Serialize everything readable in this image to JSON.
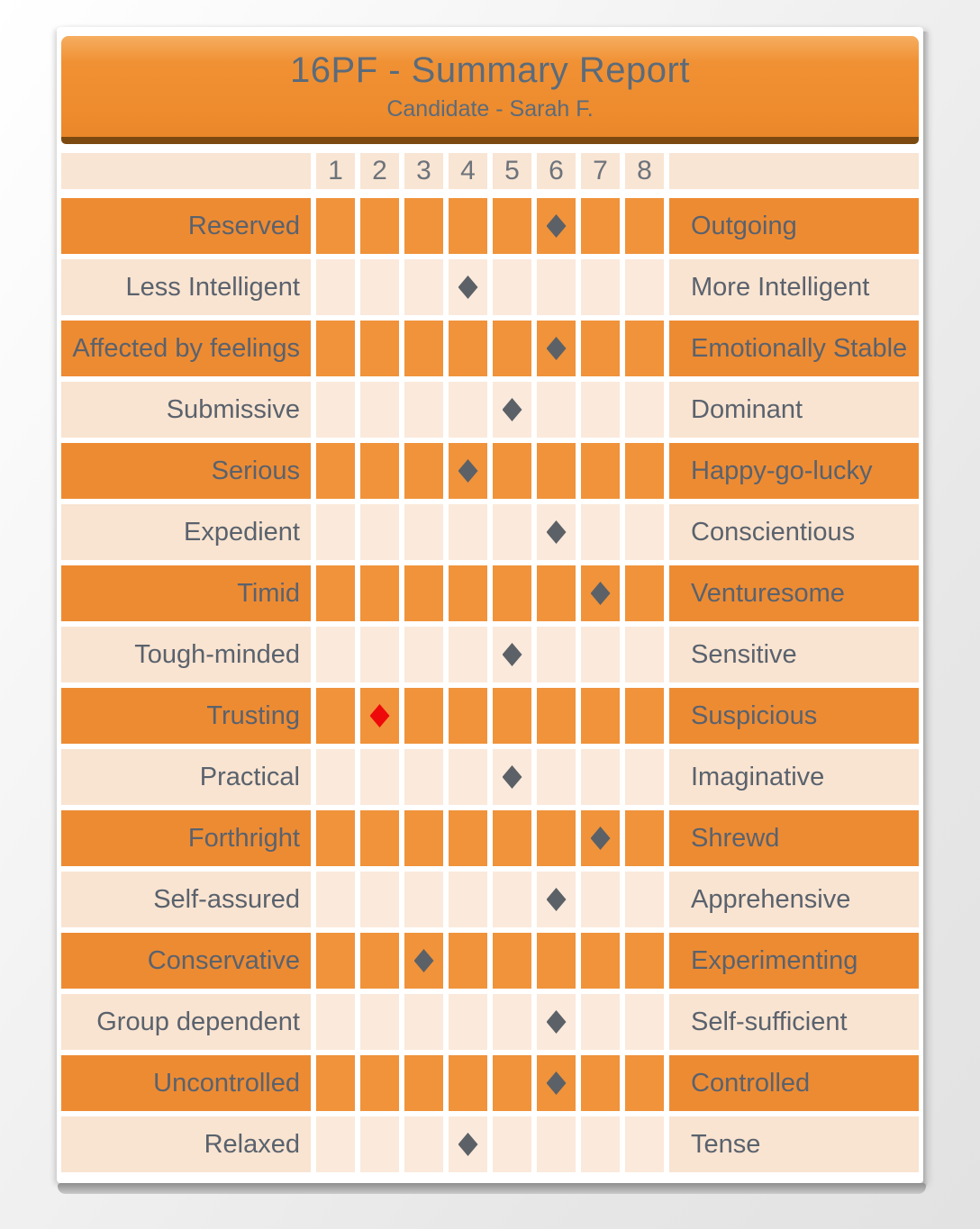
{
  "page": {
    "title": "16PF - Summary Report",
    "subtitle": "Candidate - Sarah F."
  },
  "colors": {
    "orange": "#ed8b33",
    "orange_cell": "#f0933b",
    "peach": "#f9e4d1",
    "peach_cell": "#fbe9db",
    "scale_bg": "#f9e5d3",
    "header_edge": "#7c4a10",
    "title_text": "#5b6b7b",
    "label_text": "#5a626d",
    "tick_text": "#6d737b",
    "marker": "#5b6167",
    "marker_red": "#ee0a0a"
  },
  "chart_data": {
    "type": "scatter",
    "title": "16PF - Summary Report",
    "subtitle": "Candidate - Sarah F.",
    "x_range": [
      1,
      8
    ],
    "x_ticks": [
      "1",
      "2",
      "3",
      "4",
      "5",
      "6",
      "7",
      "8"
    ],
    "grid": false,
    "legend": false,
    "factors": [
      {
        "left": "Reserved",
        "right": "Outgoing",
        "score": 6,
        "marker": "gray"
      },
      {
        "left": "Less Intelligent",
        "right": "More Intelligent",
        "score": 4,
        "marker": "gray"
      },
      {
        "left": "Affected by feelings",
        "right": "Emotionally Stable",
        "score": 6,
        "marker": "gray"
      },
      {
        "left": "Submissive",
        "right": "Dominant",
        "score": 5,
        "marker": "gray"
      },
      {
        "left": "Serious",
        "right": "Happy-go-lucky",
        "score": 4,
        "marker": "gray"
      },
      {
        "left": "Expedient",
        "right": "Conscientious",
        "score": 6,
        "marker": "gray"
      },
      {
        "left": "Timid",
        "right": "Venturesome",
        "score": 7,
        "marker": "gray"
      },
      {
        "left": "Tough-minded",
        "right": "Sensitive",
        "score": 5,
        "marker": "gray"
      },
      {
        "left": "Trusting",
        "right": "Suspicious",
        "score": 2,
        "marker": "red"
      },
      {
        "left": "Practical",
        "right": "Imaginative",
        "score": 5,
        "marker": "gray"
      },
      {
        "left": "Forthright",
        "right": "Shrewd",
        "score": 7,
        "marker": "gray"
      },
      {
        "left": "Self-assured",
        "right": "Apprehensive",
        "score": 6,
        "marker": "gray"
      },
      {
        "left": "Conservative",
        "right": "Experimenting",
        "score": 3,
        "marker": "gray"
      },
      {
        "left": "Group dependent",
        "right": "Self-sufficient",
        "score": 6,
        "marker": "gray"
      },
      {
        "left": "Uncontrolled",
        "right": "Controlled",
        "score": 6,
        "marker": "gray"
      },
      {
        "left": "Relaxed",
        "right": "Tense",
        "score": 4,
        "marker": "gray"
      }
    ]
  }
}
